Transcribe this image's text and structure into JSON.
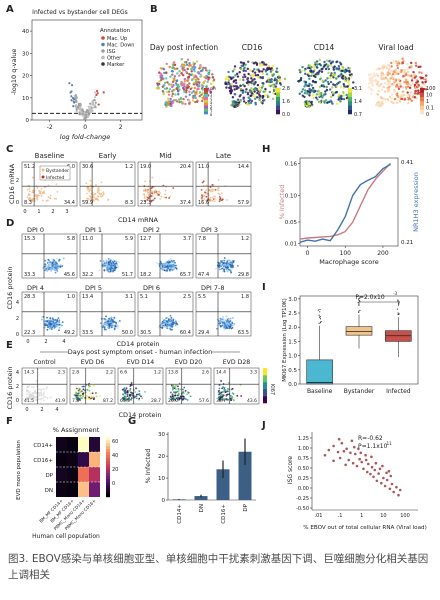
{
  "panel_letters": [
    "A",
    "B",
    "C",
    "D",
    "E",
    "F",
    "G",
    "H",
    "I",
    "J"
  ],
  "panel_a": {
    "chart_data": {
      "type": "scatter",
      "title": "Infected vs bystander cell DEGs",
      "xlabel": "log fold-change",
      "ylabel": "-log10 q-value",
      "xticks": [
        "-2",
        "0",
        "2"
      ],
      "yticks": [
        "0",
        "10",
        "20",
        "30",
        "40"
      ],
      "xlim": [
        -3,
        3.2
      ],
      "ylim": [
        0,
        45
      ],
      "legend_title": "Annotation",
      "legend": [
        {
          "label": "Mac. Up",
          "color": "#d04a3f"
        },
        {
          "label": "Mac. Down",
          "color": "#5b80b8"
        },
        {
          "label": "ISG",
          "color": "#9e9e9e"
        },
        {
          "label": "Other",
          "color": "#b9b9b9"
        },
        {
          "label": "Marker",
          "color": "#333333"
        }
      ]
    }
  },
  "panel_b": {
    "titles": [
      "Day post infection",
      "CD16",
      "CD14",
      "Viral load"
    ],
    "colorbars": [
      {
        "ticks": [
          "DPI",
          "0",
          "1",
          "2",
          "3",
          "4",
          "5",
          "6",
          "7",
          "8"
        ]
      },
      {
        "ticks": [
          "2.8",
          "1.6",
          "0.0"
        ]
      },
      {
        "ticks": [
          "3.1",
          "1.4",
          "0.7"
        ]
      },
      {
        "ticks": [
          "100",
          "10",
          "1",
          "0.1",
          "0"
        ]
      }
    ]
  },
  "panel_c": {
    "titles": [
      "Baseline",
      "Early",
      "Mid",
      "Late"
    ],
    "ylabel": "CD16 mRNA",
    "xlabel": "CD14 mRNA",
    "legend": [
      "Bystander",
      "Infected"
    ],
    "quadrants": [
      [
        "51.2",
        "6.0",
        "8.3",
        "34.4"
      ],
      [
        "30.6",
        "1.2",
        "59.9",
        "8.3"
      ],
      [
        "19.0",
        "20.4",
        "23.3",
        "37.4"
      ],
      [
        "11.0",
        "14.4",
        "16.6",
        "57.9"
      ]
    ],
    "xticks": [
      "0",
      "1",
      "2",
      "3"
    ],
    "yticks": [
      "0",
      "2"
    ]
  },
  "panel_d": {
    "titles": [
      "DPI 0",
      "DPI 1",
      "DPI 2",
      "DPI 3",
      "DPI 4",
      "DPI 5",
      "DPI 6",
      "DPI 7-8"
    ],
    "ylabel": "CD16 protein",
    "xlabel": "CD14 protein",
    "quadrants": [
      [
        "15.3",
        "5.8",
        "33.3",
        "45.6"
      ],
      [
        "11.0",
        "5.9",
        "32.2",
        "51.7"
      ],
      [
        "12.7",
        "3.7",
        "18.2",
        "65.7"
      ],
      [
        "7.8",
        "1.2",
        "47.4",
        "29.8"
      ],
      [
        "28.3",
        "1.0",
        "22.3",
        "49.2"
      ],
      [
        "13.4",
        "3.1",
        "33.5",
        "50.0"
      ],
      [
        "5.1",
        "2.5",
        "30.5",
        "60.4"
      ],
      [
        "5.5",
        "1.8",
        "29.4",
        "63.5"
      ]
    ],
    "xticks": [
      "0",
      "2",
      "4"
    ],
    "yticks": [
      "0",
      "2",
      "4"
    ]
  },
  "panel_e": {
    "header": "Days post symptom onset - human infection",
    "titles": [
      "Control",
      "EVD D6",
      "EVD D14",
      "EVD D20",
      "EVD D28"
    ],
    "ylabel": "CD16 protein",
    "xlabel": "CD14 protein",
    "colorbar_label": "KI67",
    "quadrants": [
      [
        "14.3",
        "2.3",
        "41.5",
        "41.9"
      ],
      [
        "2.8",
        "2.2",
        "7.8",
        "87.2"
      ],
      [
        "6.6",
        "1.2",
        "63.5",
        "28.7"
      ],
      [
        "13.8",
        "2.6",
        "26.0",
        "57.6"
      ],
      [
        "14.4",
        "3.3",
        "38.7",
        "43.6"
      ]
    ],
    "xticks": [
      "0",
      "2",
      "4"
    ],
    "yticks": [
      "0",
      "2",
      "4"
    ]
  },
  "panel_f": {
    "chart_data": {
      "type": "heatmap",
      "title": "% Assignment",
      "ylabel": "EVD mono population",
      "xlabel": "Human cell population",
      "rows": [
        "CD14+",
        "CD16+",
        "DP",
        "DN"
      ],
      "cols": [
        "BM_MF CD14+",
        "BM_MF CD16+",
        "PBMC_Mono CD14+",
        "PBMC_Mono CD16+"
      ],
      "values": [
        [
          4,
          2,
          85,
          9
        ],
        [
          2,
          3,
          12,
          68
        ],
        [
          5,
          3,
          55,
          37
        ],
        [
          3,
          2,
          70,
          25
        ]
      ],
      "colorbar_ticks": [
        "60",
        "40",
        "20",
        "0"
      ],
      "vmax": 80
    }
  },
  "panel_g": {
    "chart_data": {
      "type": "bar",
      "categories": [
        "CD14+",
        "DN",
        "CD16+",
        "DP"
      ],
      "values": [
        0.3,
        1.8,
        14,
        22
      ],
      "errors": [
        0.2,
        0.6,
        4,
        6
      ],
      "ylabel": "% Infected",
      "yticks": [
        "0",
        "10",
        "20",
        "30"
      ],
      "ylim": [
        0,
        31
      ]
    }
  },
  "panel_h": {
    "chart_data": {
      "type": "line",
      "xlabel": "Macrophage score",
      "ylabel_left": "% Infected",
      "ylabel_right": "NR1H3 expression",
      "xticks": [
        "0",
        "100",
        "200"
      ],
      "yticks_left": [
        "0.01",
        "0.05",
        "0.10",
        "0.16"
      ],
      "yticks_right": [
        "0.21",
        "0.41"
      ],
      "xlim": [
        -20,
        240
      ],
      "series": [
        {
          "name": "% Infected",
          "color": "#c8797e",
          "x": [
            -20,
            0,
            20,
            40,
            60,
            80,
            100,
            120,
            140,
            160,
            180,
            200,
            220
          ],
          "y": [
            0.018,
            0.02,
            0.021,
            0.022,
            0.023,
            0.026,
            0.032,
            0.05,
            0.08,
            0.11,
            0.13,
            0.145,
            0.16
          ]
        },
        {
          "name": "NR1H3 expression",
          "color": "#3f72b0",
          "x": [
            -20,
            0,
            20,
            40,
            60,
            80,
            100,
            120,
            140,
            160,
            180,
            200,
            220
          ],
          "y": [
            0.012,
            0.016,
            0.014,
            0.018,
            0.015,
            0.035,
            0.06,
            0.1,
            0.12,
            0.128,
            0.135,
            0.15,
            0.158
          ]
        }
      ]
    }
  },
  "panel_i": {
    "chart_data": {
      "type": "box",
      "categories": [
        "Baseline",
        "Bystander",
        "Infected"
      ],
      "ylabel": "MKI67 Expression (Log TP10K)",
      "yticks": [
        "0.0",
        "0.5",
        "1.0",
        "1.5",
        "2.0",
        "2.5",
        "3.0"
      ],
      "ylim": [
        0,
        3.1
      ],
      "annotation": "P=2.0x10",
      "annotation_exp": "-3",
      "boxes": [
        {
          "q1": 0.0,
          "median": 0.05,
          "q3": 0.85,
          "low": 0.0,
          "high": 2.05,
          "color": "#4bb7d0"
        },
        {
          "q1": 1.72,
          "median": 1.85,
          "q3": 2.02,
          "low": 1.25,
          "high": 2.45,
          "color": "#efc488"
        },
        {
          "q1": 1.5,
          "median": 1.7,
          "q3": 1.88,
          "low": 0.95,
          "high": 2.35,
          "color": "#c9504a"
        }
      ]
    }
  },
  "panel_j": {
    "chart_data": {
      "type": "scatter",
      "xlabel": "% EBOV out of total cellular RNA (Viral load)",
      "ylabel": "ISG score",
      "xticks": [
        ".01",
        ".1",
        "1",
        "10",
        "100"
      ],
      "yticks": [
        "1.25",
        "1.00",
        "0.75",
        "0.50",
        "0.25",
        "0.00",
        "-0.25",
        "-0.50"
      ],
      "ylim": [
        -0.55,
        1.4
      ],
      "xscale": "log",
      "stats_r": "R=-0.62",
      "stats_p": "P=1.1x10",
      "stats_p_exp": "-11",
      "color": "#9e3a3a",
      "points": [
        [
          0.02,
          0.82
        ],
        [
          0.03,
          0.95
        ],
        [
          0.05,
          1.05
        ],
        [
          0.08,
          0.9
        ],
        [
          0.1,
          0.75
        ],
        [
          0.12,
          1.12
        ],
        [
          0.15,
          0.92
        ],
        [
          0.2,
          0.98
        ],
        [
          0.25,
          0.7
        ],
        [
          0.3,
          0.88
        ],
        [
          0.35,
          1.18
        ],
        [
          0.4,
          0.62
        ],
        [
          0.5,
          0.85
        ],
        [
          0.6,
          0.55
        ],
        [
          0.7,
          0.98
        ],
        [
          0.8,
          0.72
        ],
        [
          1,
          0.65
        ],
        [
          1.2,
          0.48
        ],
        [
          1.5,
          0.82
        ],
        [
          1.8,
          0.4
        ],
        [
          2,
          0.6
        ],
        [
          2.5,
          0.35
        ],
        [
          3,
          0.52
        ],
        [
          3.5,
          0.28
        ],
        [
          4,
          0.45
        ],
        [
          5,
          0.18
        ],
        [
          6,
          0.36
        ],
        [
          8,
          0.12
        ],
        [
          10,
          0.25
        ],
        [
          12,
          0.05
        ],
        [
          15,
          0.2
        ],
        [
          20,
          -0.02
        ],
        [
          25,
          0.1
        ],
        [
          30,
          -0.1
        ],
        [
          40,
          0.02
        ],
        [
          50,
          -0.18
        ],
        [
          60,
          -0.05
        ],
        [
          0.05,
          0.68
        ],
        [
          0.09,
          1.22
        ],
        [
          0.18,
          0.58
        ],
        [
          0.45,
          1.02
        ],
        [
          0.9,
          0.88
        ],
        [
          1.6,
          0.7
        ],
        [
          2.8,
          0.78
        ],
        [
          4.5,
          0.62
        ],
        [
          7,
          0.48
        ],
        [
          9,
          0.55
        ],
        [
          14,
          0.38
        ],
        [
          18,
          0.42
        ],
        [
          22,
          0.3
        ]
      ]
    }
  },
  "caption": "图3. EBOV感染与单核细胞亚型、单核细胞中干扰素刺激基因下调、巨噬细胞分化相关基因上调相关"
}
